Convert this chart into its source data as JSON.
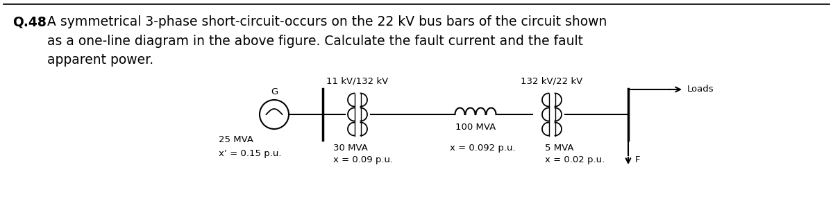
{
  "title_bold": "Q.48",
  "title_line1": " A symmetrical 3-phase short-circuit-occurs on the 22 kV bus bars of the circuit shown",
  "title_line2": "      as a one-line diagram in the above figure. Calculate the fault current and the fault",
  "title_line3": "      apparent power.",
  "bg_color": "#ffffff",
  "text_color": "#000000",
  "diagram": {
    "generator_label": "G",
    "generator_mva": "25 MVA",
    "generator_x": "x’ = 0.15 p.u.",
    "tx1_label": "11 kV/132 kV",
    "tx1_mva": "30 MVA",
    "tx1_x": "x = 0.09 p.u.",
    "line_mva": "100 MVA",
    "line_x": "x = 0.092 p.u.",
    "tx2_label": "132 kV/22 kV",
    "tx2_mva": "5 MVA",
    "tx2_x": "x = 0.02 p.u.",
    "loads_label": "Loads",
    "fault_label": "F"
  },
  "font_size_title": 13.5,
  "font_size_diagram": 9.5
}
